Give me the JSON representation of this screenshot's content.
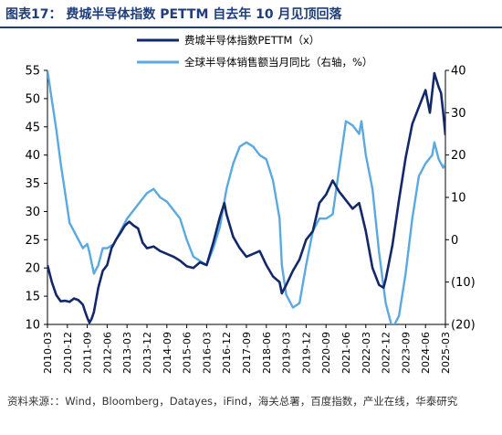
{
  "header": {
    "title": "图表17： 费城半导体指数 PETTM 自去年 10 月见顶回落"
  },
  "source": "资料来源：：Wind，Bloomberg，Datayes，iFind，海关总署，百度指数，产业在线，华泰研究",
  "colors": {
    "title": "#1f3d7a",
    "pe_series": "#13286b",
    "sales_series": "#5aa9e0"
  },
  "chart_data": {
    "type": "line",
    "x_ticks": [
      "2010-03",
      "2010-12",
      "2011-09",
      "2012-06",
      "2013-03",
      "2013-12",
      "2014-09",
      "2015-06",
      "2016-03",
      "2016-12",
      "2017-09",
      "2018-06",
      "2019-03",
      "2019-12",
      "2020-09",
      "2021-06",
      "2022-03",
      "2022-12",
      "2023-09",
      "2024-06",
      "2025-03"
    ],
    "x_start": "2010-03",
    "x_end": "2025-03",
    "left_axis": {
      "ylim": [
        10,
        55
      ],
      "ticks": [
        "10",
        "15",
        "20",
        "25",
        "30",
        "35",
        "40",
        "45",
        "50",
        "55"
      ]
    },
    "right_axis": {
      "ylim": [
        -20,
        40
      ],
      "ticks": [
        "(20)",
        "(10)",
        "0",
        "10",
        "20",
        "30",
        "40"
      ]
    },
    "series": [
      {
        "name": "费城半导体指数PETTM（x）",
        "axis": "left",
        "points": [
          [
            "2010-03",
            20.5
          ],
          [
            "2010-05",
            17.5
          ],
          [
            "2010-07",
            15.2
          ],
          [
            "2010-09",
            14.1
          ],
          [
            "2010-11",
            14.2
          ],
          [
            "2011-01",
            14.0
          ],
          [
            "2011-03",
            14.6
          ],
          [
            "2011-05",
            14.3
          ],
          [
            "2011-07",
            13.5
          ],
          [
            "2011-08",
            12.3
          ],
          [
            "2011-09",
            11.2
          ],
          [
            "2011-10",
            10.3
          ],
          [
            "2011-11",
            11.0
          ],
          [
            "2011-12",
            12.2
          ],
          [
            "2012-02",
            16.5
          ],
          [
            "2012-04",
            19.5
          ],
          [
            "2012-06",
            20.5
          ],
          [
            "2012-08",
            23.5
          ],
          [
            "2012-10",
            25.0
          ],
          [
            "2012-12",
            26.2
          ],
          [
            "2013-02",
            27.5
          ],
          [
            "2013-04",
            28.2
          ],
          [
            "2013-06",
            27.5
          ],
          [
            "2013-08",
            27.0
          ],
          [
            "2013-10",
            24.5
          ],
          [
            "2013-12",
            23.5
          ],
          [
            "2014-03",
            23.8
          ],
          [
            "2014-06",
            23.0
          ],
          [
            "2014-09",
            22.5
          ],
          [
            "2014-12",
            22.0
          ],
          [
            "2015-03",
            21.3
          ],
          [
            "2015-06",
            20.3
          ],
          [
            "2015-09",
            20.0
          ],
          [
            "2015-12",
            21.0
          ],
          [
            "2016-03",
            20.5
          ],
          [
            "2016-06",
            24.5
          ],
          [
            "2016-09",
            29.0
          ],
          [
            "2016-11",
            31.5
          ],
          [
            "2016-12",
            29.5
          ],
          [
            "2017-03",
            25.5
          ],
          [
            "2017-06",
            23.5
          ],
          [
            "2017-09",
            22.0
          ],
          [
            "2017-12",
            22.5
          ],
          [
            "2018-03",
            23.0
          ],
          [
            "2018-06",
            20.5
          ],
          [
            "2018-09",
            18.5
          ],
          [
            "2018-12",
            17.5
          ],
          [
            "2019-01",
            15.5
          ],
          [
            "2019-03",
            17.0
          ],
          [
            "2019-06",
            19.5
          ],
          [
            "2019-09",
            21.5
          ],
          [
            "2019-12",
            25.0
          ],
          [
            "2020-03",
            26.5
          ],
          [
            "2020-06",
            31.5
          ],
          [
            "2020-09",
            33.0
          ],
          [
            "2020-12",
            35.5
          ],
          [
            "2021-03",
            33.5
          ],
          [
            "2021-06",
            32.0
          ],
          [
            "2021-09",
            30.5
          ],
          [
            "2021-12",
            31.5
          ],
          [
            "2022-03",
            26.5
          ],
          [
            "2022-06",
            20.0
          ],
          [
            "2022-09",
            17.0
          ],
          [
            "2022-11",
            16.5
          ],
          [
            "2022-12",
            18.0
          ],
          [
            "2023-03",
            24.0
          ],
          [
            "2023-06",
            32.0
          ],
          [
            "2023-09",
            39.5
          ],
          [
            "2023-12",
            45.5
          ],
          [
            "2024-03",
            48.5
          ],
          [
            "2024-06",
            51.5
          ],
          [
            "2024-08",
            47.5
          ],
          [
            "2024-10",
            54.5
          ],
          [
            "2024-12",
            52.0
          ],
          [
            "2025-01",
            51.0
          ],
          [
            "2025-02",
            47.5
          ],
          [
            "2025-03",
            43.5
          ]
        ]
      },
      {
        "name": "全球半导体销售额当月同比（右轴，%）",
        "axis": "right",
        "points": [
          [
            "2010-03",
            40
          ],
          [
            "2010-05",
            33
          ],
          [
            "2010-07",
            26
          ],
          [
            "2010-09",
            18
          ],
          [
            "2010-11",
            11
          ],
          [
            "2011-01",
            4
          ],
          [
            "2011-03",
            2
          ],
          [
            "2011-05",
            0
          ],
          [
            "2011-07",
            -2
          ],
          [
            "2011-09",
            -1
          ],
          [
            "2011-10",
            -3
          ],
          [
            "2011-12",
            -8
          ],
          [
            "2012-02",
            -6
          ],
          [
            "2012-04",
            -2
          ],
          [
            "2012-06",
            -2
          ],
          [
            "2012-09",
            -1
          ],
          [
            "2012-12",
            2
          ],
          [
            "2013-03",
            5
          ],
          [
            "2013-06",
            7
          ],
          [
            "2013-09",
            9
          ],
          [
            "2013-12",
            11
          ],
          [
            "2014-03",
            12
          ],
          [
            "2014-06",
            10
          ],
          [
            "2014-09",
            9
          ],
          [
            "2014-12",
            7
          ],
          [
            "2015-03",
            5
          ],
          [
            "2015-06",
            0
          ],
          [
            "2015-09",
            -4
          ],
          [
            "2015-12",
            -5
          ],
          [
            "2016-03",
            -6
          ],
          [
            "2016-06",
            -2
          ],
          [
            "2016-09",
            3
          ],
          [
            "2016-12",
            12
          ],
          [
            "2017-03",
            18
          ],
          [
            "2017-06",
            22
          ],
          [
            "2017-09",
            23
          ],
          [
            "2017-12",
            22
          ],
          [
            "2018-03",
            20
          ],
          [
            "2018-06",
            19
          ],
          [
            "2018-09",
            14
          ],
          [
            "2018-12",
            5
          ],
          [
            "2019-01",
            -6
          ],
          [
            "2019-03",
            -13
          ],
          [
            "2019-06",
            -16
          ],
          [
            "2019-09",
            -15
          ],
          [
            "2019-12",
            -6
          ],
          [
            "2020-03",
            2
          ],
          [
            "2020-06",
            5
          ],
          [
            "2020-09",
            5
          ],
          [
            "2020-12",
            6
          ],
          [
            "2021-03",
            17
          ],
          [
            "2021-06",
            28
          ],
          [
            "2021-09",
            27
          ],
          [
            "2021-12",
            25
          ],
          [
            "2022-01",
            28
          ],
          [
            "2022-03",
            20
          ],
          [
            "2022-06",
            12
          ],
          [
            "2022-09",
            -3
          ],
          [
            "2022-12",
            -15
          ],
          [
            "2023-03",
            -21
          ],
          [
            "2023-06",
            -18
          ],
          [
            "2023-09",
            -8
          ],
          [
            "2023-12",
            5
          ],
          [
            "2024-03",
            15
          ],
          [
            "2024-06",
            18
          ],
          [
            "2024-09",
            20
          ],
          [
            "2024-10",
            23
          ],
          [
            "2024-12",
            19
          ],
          [
            "2025-02",
            17
          ],
          [
            "2025-03",
            18
          ]
        ]
      }
    ]
  }
}
